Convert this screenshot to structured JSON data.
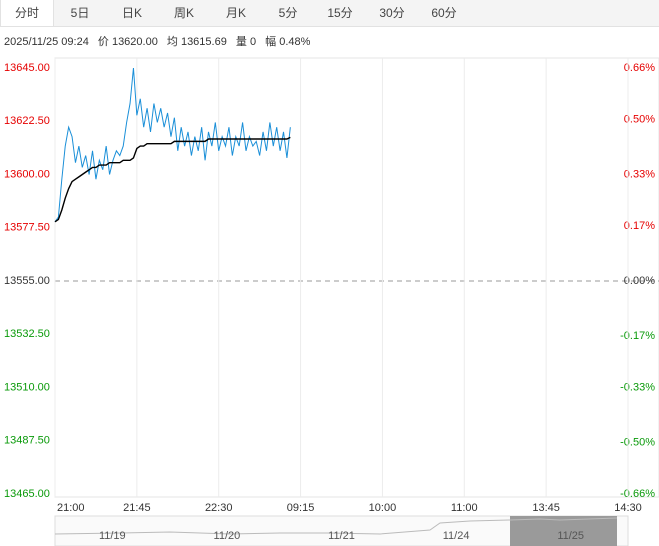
{
  "tabs": [
    "分时",
    "5日",
    "日K",
    "周K",
    "月K",
    "5分",
    "15分",
    "30分",
    "60分"
  ],
  "info": {
    "time": "2025/11/25 09:24",
    "price": "价 13620.00",
    "avg": "均 13615.69",
    "volume": "量 0",
    "change": "幅 0.48%"
  },
  "chart_data": {
    "type": "line",
    "x": [
      0,
      2,
      4,
      6,
      8,
      10,
      12,
      14,
      16,
      18,
      20,
      22,
      24,
      26,
      28,
      30,
      32,
      34,
      36,
      38,
      40,
      42,
      44,
      46,
      48,
      50,
      52,
      54,
      56,
      58,
      60,
      62,
      64,
      66,
      68,
      70,
      72,
      74,
      76,
      78,
      80,
      82,
      84,
      86,
      88,
      90,
      92,
      94,
      96,
      98,
      100,
      102,
      104,
      106,
      108,
      110,
      112,
      114,
      116,
      118,
      120,
      122,
      124,
      126,
      128,
      130,
      132,
      134,
      136,
      138
    ],
    "series": [
      {
        "color": "#1a8fd8",
        "values": [
          13580,
          13582,
          13598,
          13612,
          13620,
          13616,
          13605,
          13612,
          13603,
          13608,
          13600,
          13610,
          13598,
          13606,
          13602,
          13612,
          13600,
          13606,
          13610,
          13608,
          13612,
          13622,
          13630,
          13645,
          13625,
          13632,
          13620,
          13628,
          13618,
          13630,
          13622,
          13628,
          13620,
          13626,
          13616,
          13624,
          13610,
          13620,
          13612,
          13618,
          13608,
          13616,
          13610,
          13620,
          13606,
          13618,
          13612,
          13622,
          13610,
          13616,
          13612,
          13620,
          13608,
          13616,
          13612,
          13622,
          13610,
          13616,
          13612,
          13614,
          13608,
          13618,
          13610,
          13622,
          13612,
          13620,
          13610,
          13618,
          13607,
          13620
        ]
      },
      {
        "color": "#000000",
        "values": [
          13580,
          13581,
          13585,
          13590,
          13594,
          13597,
          13598,
          13599,
          13600,
          13601,
          13602,
          13603,
          13603,
          13604,
          13604,
          13604,
          13605,
          13605,
          13605,
          13605,
          13606,
          13606,
          13606,
          13607,
          13611,
          13612,
          13612,
          13613,
          13613,
          13613,
          13613,
          13613,
          13613,
          13613,
          13613,
          13614,
          13614,
          13614,
          13614,
          13614,
          13614,
          13614,
          13614,
          13614,
          13614,
          13615,
          13615,
          13615,
          13615,
          13615,
          13615,
          13615,
          13615,
          13615,
          13615,
          13615,
          13615,
          13615,
          13615,
          13615,
          13615,
          13615,
          13615,
          13615,
          13615,
          13615,
          13615,
          13615,
          13615,
          13615.69
        ]
      }
    ],
    "xlim": [
      0,
      336
    ],
    "xticks": [
      {
        "value": 0,
        "label": "21:00"
      },
      {
        "value": 48,
        "label": "21:45"
      },
      {
        "value": 96,
        "label": "22:30"
      },
      {
        "value": 144,
        "label": "09:15"
      },
      {
        "value": 192,
        "label": "10:00"
      },
      {
        "value": 240,
        "label": "11:00"
      },
      {
        "value": 288,
        "label": "13:45"
      },
      {
        "value": 336,
        "label": "14:30"
      }
    ],
    "ylim": [
      13465,
      13645
    ],
    "yticks": [
      {
        "value": 13645,
        "label": "13645.00"
      },
      {
        "value": 13622.5,
        "label": "13622.50"
      },
      {
        "value": 13600,
        "label": "13600.00"
      },
      {
        "value": 13577.5,
        "label": "13577.50"
      },
      {
        "value": 13555,
        "label": "13555.00"
      },
      {
        "value": 13532.5,
        "label": "13532.50"
      },
      {
        "value": 13510,
        "label": "13510.00"
      },
      {
        "value": 13487.5,
        "label": "13487.50"
      },
      {
        "value": 13465,
        "label": "13465.00"
      }
    ],
    "y2lim": [
      -0.66,
      0.66
    ],
    "y2ticks": [
      {
        "value": 0.66,
        "label": "0.66%"
      },
      {
        "value": 0.5,
        "label": "0.50%"
      },
      {
        "value": 0.33,
        "label": "0.33%"
      },
      {
        "value": 0.17,
        "label": "0.17%"
      },
      {
        "value": 0,
        "label": "0.00%"
      },
      {
        "value": -0.17,
        "label": "-0.17%"
      },
      {
        "value": -0.33,
        "label": "-0.33%"
      },
      {
        "value": -0.5,
        "label": "-0.50%"
      },
      {
        "value": -0.66,
        "label": "-0.66%"
      }
    ],
    "base_value": 13555,
    "up_color": "#e60000",
    "down_color": "#0a9a0a",
    "navigator_dates": [
      "11/19",
      "11/20",
      "11/21",
      "11/24",
      "11/25"
    ]
  }
}
